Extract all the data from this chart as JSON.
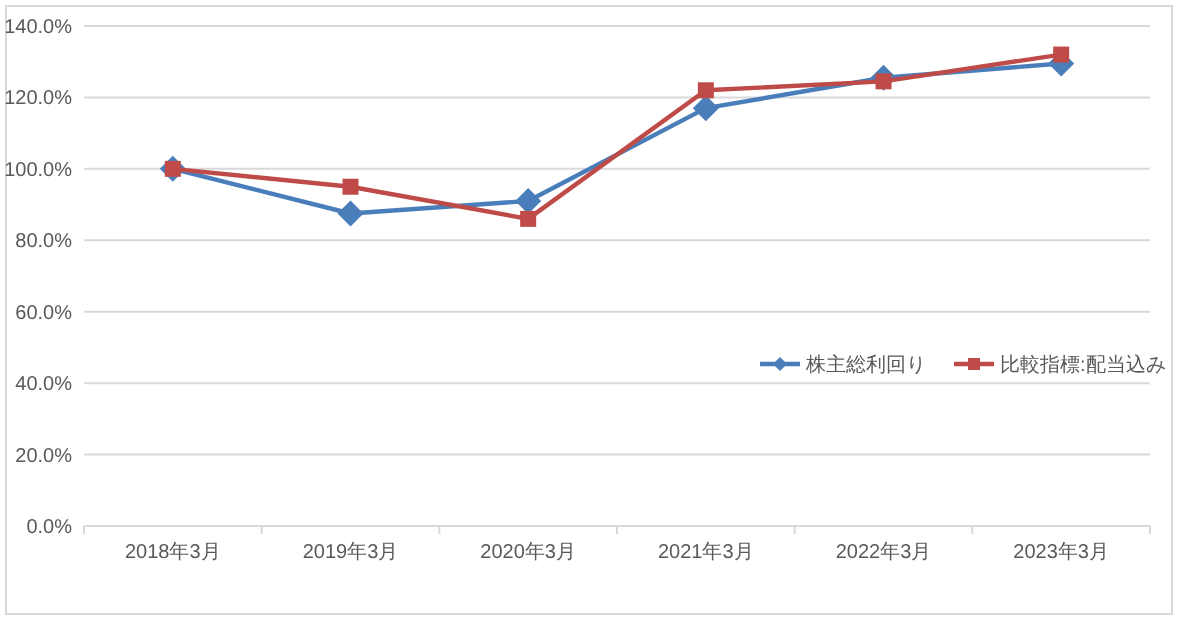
{
  "chart_data": {
    "type": "line",
    "categories": [
      "2018年3月",
      "2019年3月",
      "2020年3月",
      "2021年3月",
      "2022年3月",
      "2023年3月"
    ],
    "series": [
      {
        "name": "株主総利回り",
        "color": "#4a7ebb",
        "marker": "diamond",
        "values": [
          100,
          87.5,
          91,
          117,
          125.5,
          129.5
        ]
      },
      {
        "name": "比較指標:配当込み",
        "color": "#be4b48",
        "marker": "square",
        "values": [
          100,
          95,
          86,
          122,
          124.5,
          132
        ]
      }
    ],
    "ylim": [
      0,
      140
    ],
    "yticks": [
      {
        "value": 0,
        "label": "0.0%"
      },
      {
        "value": 20,
        "label": "20.0%"
      },
      {
        "value": 40,
        "label": "40.0%"
      },
      {
        "value": 60,
        "label": "60.0%"
      },
      {
        "value": 80,
        "label": "80.0%"
      },
      {
        "value": 100,
        "label": "100.0%"
      },
      {
        "value": 120,
        "label": "120.0%"
      },
      {
        "value": 140,
        "label": "140.0%"
      }
    ],
    "grid": "y",
    "legend": "right"
  }
}
